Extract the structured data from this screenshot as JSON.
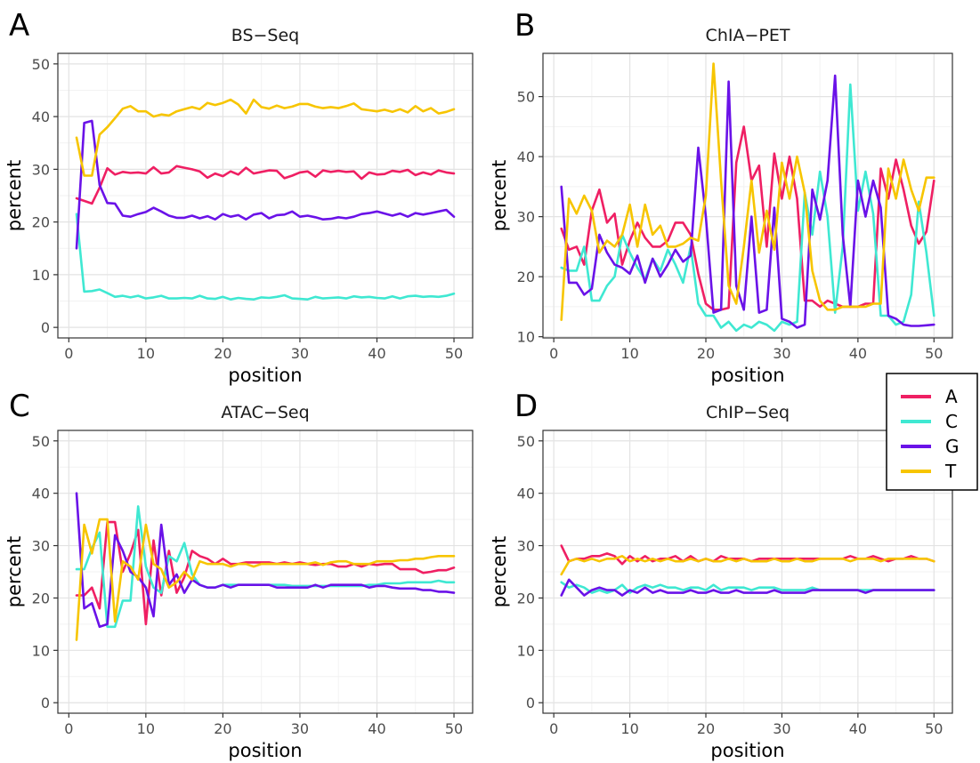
{
  "colors": {
    "A": "#ef1f63",
    "C": "#3fe8d2",
    "G": "#6a12e8",
    "T": "#f7c500"
  },
  "legend": {
    "position": "right",
    "entries": [
      {
        "label": "A",
        "color_key": "A"
      },
      {
        "label": "C",
        "color_key": "C"
      },
      {
        "label": "G",
        "color_key": "G"
      },
      {
        "label": "T",
        "color_key": "T"
      }
    ]
  },
  "chart_data": [
    {
      "panel": "A",
      "title": "BS−Seq",
      "type": "line",
      "xlabel": "position",
      "ylabel": "percent",
      "xlim": [
        1,
        50
      ],
      "ylim": [
        -2,
        52
      ],
      "xticks": [
        0,
        10,
        20,
        30,
        40,
        50
      ],
      "yticks": [
        0,
        10,
        20,
        30,
        40,
        50
      ],
      "grid": true,
      "x_start": 1,
      "series": [
        {
          "name": "A",
          "values": [
            24.5,
            24.0,
            23.5,
            26.5,
            30.2,
            29.0,
            29.5,
            29.3,
            29.4,
            29.2,
            30.4,
            29.2,
            29.4,
            30.6,
            30.3,
            30.0,
            29.6,
            28.4,
            29.2,
            28.7,
            29.6,
            29.0,
            30.3,
            29.2,
            29.5,
            29.8,
            29.7,
            28.3,
            28.8,
            29.4,
            29.6,
            28.6,
            29.8,
            29.5,
            29.7,
            29.5,
            29.6,
            28.2,
            29.4,
            29.0,
            29.1,
            29.7,
            29.5,
            29.9,
            28.9,
            29.4,
            29.0,
            29.8,
            29.4,
            29.2
          ]
        },
        {
          "name": "C",
          "values": [
            21.5,
            6.8,
            6.9,
            7.2,
            6.5,
            5.8,
            6.0,
            5.7,
            6.0,
            5.5,
            5.7,
            6.0,
            5.5,
            5.5,
            5.6,
            5.5,
            6.0,
            5.5,
            5.4,
            5.8,
            5.3,
            5.6,
            5.4,
            5.3,
            5.7,
            5.6,
            5.8,
            6.1,
            5.5,
            5.4,
            5.3,
            5.8,
            5.5,
            5.6,
            5.7,
            5.5,
            5.9,
            5.7,
            5.8,
            5.6,
            5.5,
            5.9,
            5.5,
            5.9,
            6.0,
            5.8,
            5.9,
            5.8,
            6.0,
            6.4
          ]
        },
        {
          "name": "G",
          "values": [
            15.0,
            38.8,
            39.2,
            27.0,
            23.6,
            23.5,
            21.2,
            21.0,
            21.5,
            21.9,
            22.7,
            22.0,
            21.2,
            20.8,
            20.8,
            21.2,
            20.7,
            21.1,
            20.5,
            21.5,
            21.0,
            21.3,
            20.5,
            21.4,
            21.7,
            20.7,
            21.3,
            21.4,
            22.0,
            21.0,
            21.2,
            20.9,
            20.5,
            20.6,
            20.9,
            20.7,
            21.0,
            21.5,
            21.7,
            22.0,
            21.6,
            21.2,
            21.6,
            21.0,
            21.7,
            21.4,
            21.7,
            22.0,
            22.3,
            21.0
          ]
        },
        {
          "name": "T",
          "values": [
            36.0,
            28.8,
            28.8,
            36.6,
            38.0,
            39.7,
            41.5,
            42.0,
            41.0,
            41.0,
            40.0,
            40.4,
            40.2,
            41.0,
            41.4,
            41.8,
            41.4,
            42.6,
            42.2,
            42.6,
            43.2,
            42.3,
            40.6,
            43.2,
            41.8,
            41.5,
            42.1,
            41.6,
            41.9,
            42.4,
            42.4,
            41.9,
            41.6,
            41.8,
            41.6,
            42.0,
            42.5,
            41.4,
            41.2,
            41.0,
            41.3,
            40.9,
            41.4,
            40.8,
            42.0,
            41.0,
            41.6,
            40.6,
            40.9,
            41.4
          ]
        }
      ]
    },
    {
      "panel": "B",
      "title": "ChIA−PET",
      "type": "line",
      "xlabel": "position",
      "ylabel": "percent",
      "xlim": [
        1,
        50
      ],
      "ylim": [
        9.8,
        57.2
      ],
      "xticks": [
        0,
        10,
        20,
        30,
        40,
        50
      ],
      "yticks": [
        10,
        20,
        30,
        40,
        50
      ],
      "grid": true,
      "x_start": 1,
      "series": [
        {
          "name": "A",
          "values": [
            28.0,
            24.5,
            25.0,
            22.0,
            31.0,
            34.5,
            29.0,
            30.5,
            22.0,
            26.0,
            29.0,
            26.5,
            25.0,
            25.0,
            26.0,
            29.0,
            29.0,
            27.0,
            20.5,
            15.5,
            14.5,
            14.5,
            14.8,
            39.0,
            45.0,
            36.0,
            38.5,
            25.0,
            40.5,
            33.0,
            40.0,
            33.0,
            16.0,
            16.0,
            15.0,
            16.0,
            15.5,
            15.0,
            15.0,
            15.0,
            15.5,
            15.5,
            38.0,
            33.0,
            39.5,
            34.5,
            28.5,
            25.5,
            27.5,
            36.0
          ]
        },
        {
          "name": "C",
          "values": [
            21.5,
            21.0,
            21.0,
            25.0,
            16.0,
            16.0,
            18.5,
            20.0,
            27.0,
            24.0,
            21.5,
            19.5,
            23.0,
            21.0,
            24.5,
            22.0,
            19.0,
            25.0,
            15.5,
            13.5,
            13.5,
            11.5,
            12.5,
            11.0,
            12.0,
            11.5,
            12.5,
            12.0,
            11.0,
            12.5,
            12.0,
            12.5,
            34.0,
            27.0,
            37.5,
            30.0,
            14.0,
            25.0,
            52.0,
            31.0,
            37.5,
            30.5,
            13.5,
            13.5,
            12.0,
            12.5,
            17.0,
            32.5,
            24.0,
            13.5
          ]
        },
        {
          "name": "G",
          "values": [
            35.0,
            19.0,
            19.0,
            17.0,
            18.0,
            27.0,
            24.0,
            22.0,
            21.5,
            20.5,
            23.5,
            19.0,
            23.0,
            20.0,
            22.0,
            24.5,
            22.5,
            23.5,
            41.5,
            30.0,
            14.0,
            14.5,
            52.5,
            18.5,
            14.5,
            30.0,
            14.0,
            14.5,
            31.5,
            13.0,
            12.5,
            11.5,
            12.0,
            34.5,
            29.5,
            36.0,
            53.5,
            27.0,
            15.0,
            36.0,
            30.0,
            36.0,
            31.5,
            13.5,
            13.0,
            12.0,
            11.8,
            11.8,
            11.9,
            12.0
          ]
        },
        {
          "name": "T",
          "values": [
            12.8,
            33.0,
            30.5,
            33.5,
            31.0,
            24.0,
            26.0,
            25.0,
            27.0,
            32.0,
            25.0,
            32.0,
            27.0,
            28.5,
            25.0,
            25.0,
            25.5,
            26.5,
            26.0,
            33.5,
            55.5,
            36.0,
            18.5,
            15.5,
            25.0,
            36.0,
            24.0,
            31.0,
            24.5,
            39.0,
            33.0,
            40.0,
            34.0,
            21.0,
            16.0,
            14.5,
            14.5,
            15.0,
            15.0,
            15.0,
            15.0,
            15.5,
            15.5,
            38.0,
            33.0,
            39.5,
            34.5,
            31.0,
            36.5,
            36.5
          ]
        }
      ]
    },
    {
      "panel": "C",
      "title": "ATAC−Seq",
      "type": "line",
      "xlabel": "position",
      "ylabel": "percent",
      "xlim": [
        1,
        50
      ],
      "ylim": [
        -2,
        52
      ],
      "xticks": [
        0,
        10,
        20,
        30,
        40,
        50
      ],
      "yticks": [
        0,
        10,
        20,
        30,
        40,
        50
      ],
      "grid": true,
      "x_start": 1,
      "series": [
        {
          "name": "A",
          "values": [
            20.5,
            20.5,
            22.0,
            18.0,
            34.5,
            34.5,
            25.0,
            28.5,
            33.0,
            15.0,
            31.0,
            20.5,
            29.0,
            21.0,
            24.0,
            29.0,
            28.0,
            27.5,
            26.5,
            27.5,
            26.5,
            26.5,
            26.8,
            26.8,
            26.8,
            26.8,
            26.5,
            26.8,
            26.5,
            26.8,
            26.5,
            26.3,
            26.5,
            26.5,
            26.0,
            26.0,
            26.5,
            26.0,
            26.5,
            26.3,
            26.5,
            26.5,
            25.5,
            25.5,
            25.5,
            24.8,
            25.0,
            25.3,
            25.3,
            25.8
          ]
        },
        {
          "name": "C",
          "values": [
            25.5,
            25.5,
            29.5,
            32.5,
            14.5,
            14.5,
            19.5,
            19.5,
            37.5,
            26.0,
            22.0,
            21.0,
            28.0,
            27.0,
            30.5,
            24.5,
            22.5,
            22.0,
            22.0,
            22.5,
            22.5,
            22.5,
            22.5,
            22.5,
            22.5,
            22.5,
            22.5,
            22.5,
            22.3,
            22.3,
            22.3,
            22.3,
            22.3,
            22.3,
            22.3,
            22.3,
            22.3,
            22.3,
            22.5,
            22.5,
            22.8,
            22.8,
            22.8,
            23.0,
            23.0,
            23.0,
            23.0,
            23.3,
            23.0,
            23.0
          ]
        },
        {
          "name": "G",
          "values": [
            40.0,
            18.0,
            19.0,
            14.5,
            15.0,
            32.0,
            29.0,
            25.0,
            24.0,
            22.0,
            16.5,
            34.0,
            22.5,
            24.5,
            21.0,
            23.5,
            22.5,
            22.0,
            22.0,
            22.5,
            22.0,
            22.5,
            22.5,
            22.5,
            22.5,
            22.5,
            22.0,
            22.0,
            22.0,
            22.0,
            22.0,
            22.5,
            22.0,
            22.5,
            22.5,
            22.5,
            22.5,
            22.5,
            22.0,
            22.3,
            22.3,
            22.0,
            21.8,
            21.8,
            21.8,
            21.5,
            21.5,
            21.2,
            21.2,
            21.0
          ]
        },
        {
          "name": "T",
          "values": [
            12.0,
            34.0,
            28.5,
            35.0,
            35.0,
            15.5,
            27.0,
            26.0,
            23.5,
            34.0,
            26.5,
            25.5,
            22.0,
            23.0,
            25.0,
            23.5,
            27.0,
            26.5,
            26.5,
            26.5,
            26.0,
            26.5,
            26.5,
            26.0,
            26.5,
            26.5,
            26.5,
            26.5,
            26.5,
            26.5,
            26.5,
            26.8,
            26.3,
            26.8,
            27.0,
            27.0,
            26.5,
            26.5,
            26.5,
            27.0,
            27.0,
            27.0,
            27.2,
            27.2,
            27.5,
            27.5,
            27.8,
            28.0,
            28.0,
            28.0
          ]
        }
      ]
    },
    {
      "panel": "D",
      "title": "ChIP−Seq",
      "type": "line",
      "xlabel": "position",
      "ylabel": "percent",
      "xlim": [
        1,
        50
      ],
      "ylim": [
        -2,
        52
      ],
      "xticks": [
        0,
        10,
        20,
        30,
        40,
        50
      ],
      "yticks": [
        0,
        10,
        20,
        30,
        40,
        50
      ],
      "grid": true,
      "x_start": 1,
      "series": [
        {
          "name": "A",
          "values": [
            30.0,
            27.0,
            27.5,
            27.5,
            28.0,
            28.0,
            28.5,
            28.0,
            26.5,
            28.0,
            27.0,
            28.0,
            27.0,
            27.5,
            27.5,
            28.0,
            27.0,
            28.0,
            27.0,
            27.5,
            27.0,
            28.0,
            27.5,
            27.5,
            27.5,
            27.0,
            27.5,
            27.5,
            27.5,
            27.5,
            27.5,
            27.5,
            27.5,
            27.5,
            27.5,
            27.5,
            27.5,
            27.5,
            28.0,
            27.5,
            27.5,
            28.0,
            27.5,
            27.0,
            27.5,
            27.5,
            28.0,
            27.5,
            27.5,
            27.0
          ]
        },
        {
          "name": "C",
          "values": [
            23.0,
            22.0,
            22.5,
            22.0,
            21.0,
            21.5,
            21.0,
            21.5,
            22.5,
            21.0,
            22.0,
            22.5,
            22.0,
            22.5,
            22.0,
            22.0,
            21.5,
            22.0,
            22.0,
            21.5,
            22.5,
            21.5,
            22.0,
            22.0,
            22.0,
            21.5,
            22.0,
            22.0,
            22.0,
            21.5,
            21.5,
            21.5,
            21.5,
            22.0,
            21.5,
            21.5,
            21.5,
            21.5,
            21.5,
            21.5,
            21.5,
            21.5,
            21.5,
            21.5,
            21.5,
            21.5,
            21.5,
            21.5,
            21.5,
            21.5
          ]
        },
        {
          "name": "G",
          "values": [
            20.5,
            23.5,
            22.0,
            20.5,
            21.5,
            22.0,
            21.5,
            21.5,
            20.5,
            21.5,
            21.0,
            22.0,
            21.0,
            21.5,
            21.0,
            21.0,
            21.0,
            21.5,
            21.0,
            21.0,
            21.5,
            21.0,
            21.0,
            21.5,
            21.0,
            21.0,
            21.0,
            21.0,
            21.5,
            21.0,
            21.0,
            21.0,
            21.0,
            21.5,
            21.5,
            21.5,
            21.5,
            21.5,
            21.5,
            21.5,
            21.0,
            21.5,
            21.5,
            21.5,
            21.5,
            21.5,
            21.5,
            21.5,
            21.5,
            21.5
          ]
        },
        {
          "name": "T",
          "values": [
            24.5,
            27.0,
            27.5,
            27.0,
            27.5,
            27.0,
            27.5,
            27.5,
            28.0,
            27.0,
            27.5,
            27.0,
            27.5,
            27.0,
            27.5,
            27.0,
            27.0,
            27.5,
            27.0,
            27.5,
            27.0,
            27.0,
            27.5,
            27.0,
            27.5,
            27.0,
            27.0,
            27.0,
            27.5,
            27.0,
            27.0,
            27.5,
            27.0,
            27.0,
            27.5,
            27.5,
            27.5,
            27.5,
            27.0,
            27.5,
            27.5,
            27.5,
            27.0,
            27.5,
            27.5,
            27.5,
            27.5,
            27.5,
            27.5,
            27.0
          ]
        }
      ]
    }
  ]
}
